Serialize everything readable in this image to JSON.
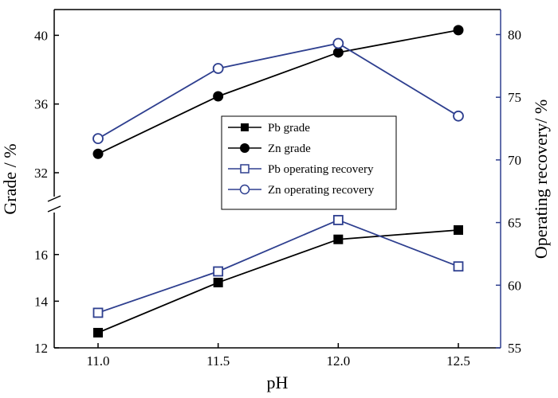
{
  "chart_data": {
    "type": "line",
    "x": [
      11.0,
      11.5,
      12.0,
      12.5
    ],
    "x_tick_labels": [
      "11.0",
      "11.5",
      "12.0",
      "12.5"
    ],
    "xlabel": "pH",
    "ylabel_left": "Grade / %",
    "ylabel_right": "Operating recovery/ %",
    "left_axis": {
      "broken": true,
      "lower_segment": {
        "range": [
          12,
          17.8
        ],
        "ticks": [
          "12",
          "14",
          "16"
        ]
      },
      "upper_segment": {
        "range": [
          32,
          41.5
        ],
        "ticks": [
          "32",
          "36",
          "40"
        ]
      }
    },
    "right_axis": {
      "range": [
        55,
        82
      ],
      "ticks": [
        "55",
        "60",
        "65",
        "70",
        "75",
        "80"
      ]
    },
    "series": [
      {
        "name": "Pb grade",
        "axis": "left",
        "values": [
          12.65,
          14.8,
          16.65,
          17.05
        ],
        "color": "#000000",
        "marker": "filled-square"
      },
      {
        "name": "Zn grade",
        "axis": "left",
        "values": [
          33.1,
          36.45,
          39.0,
          40.3
        ],
        "color": "#000000",
        "marker": "filled-circle"
      },
      {
        "name": "Pb operating recovery",
        "axis": "right",
        "values": [
          57.8,
          61.1,
          65.2,
          61.5
        ],
        "color": "#2e3f8f",
        "marker": "open-square"
      },
      {
        "name": "Zn operating recovery",
        "axis": "right",
        "values": [
          71.7,
          77.3,
          79.3,
          73.5
        ],
        "color": "#2e3f8f",
        "marker": "open-circle"
      }
    ],
    "legend_position": "center",
    "grid": false
  }
}
